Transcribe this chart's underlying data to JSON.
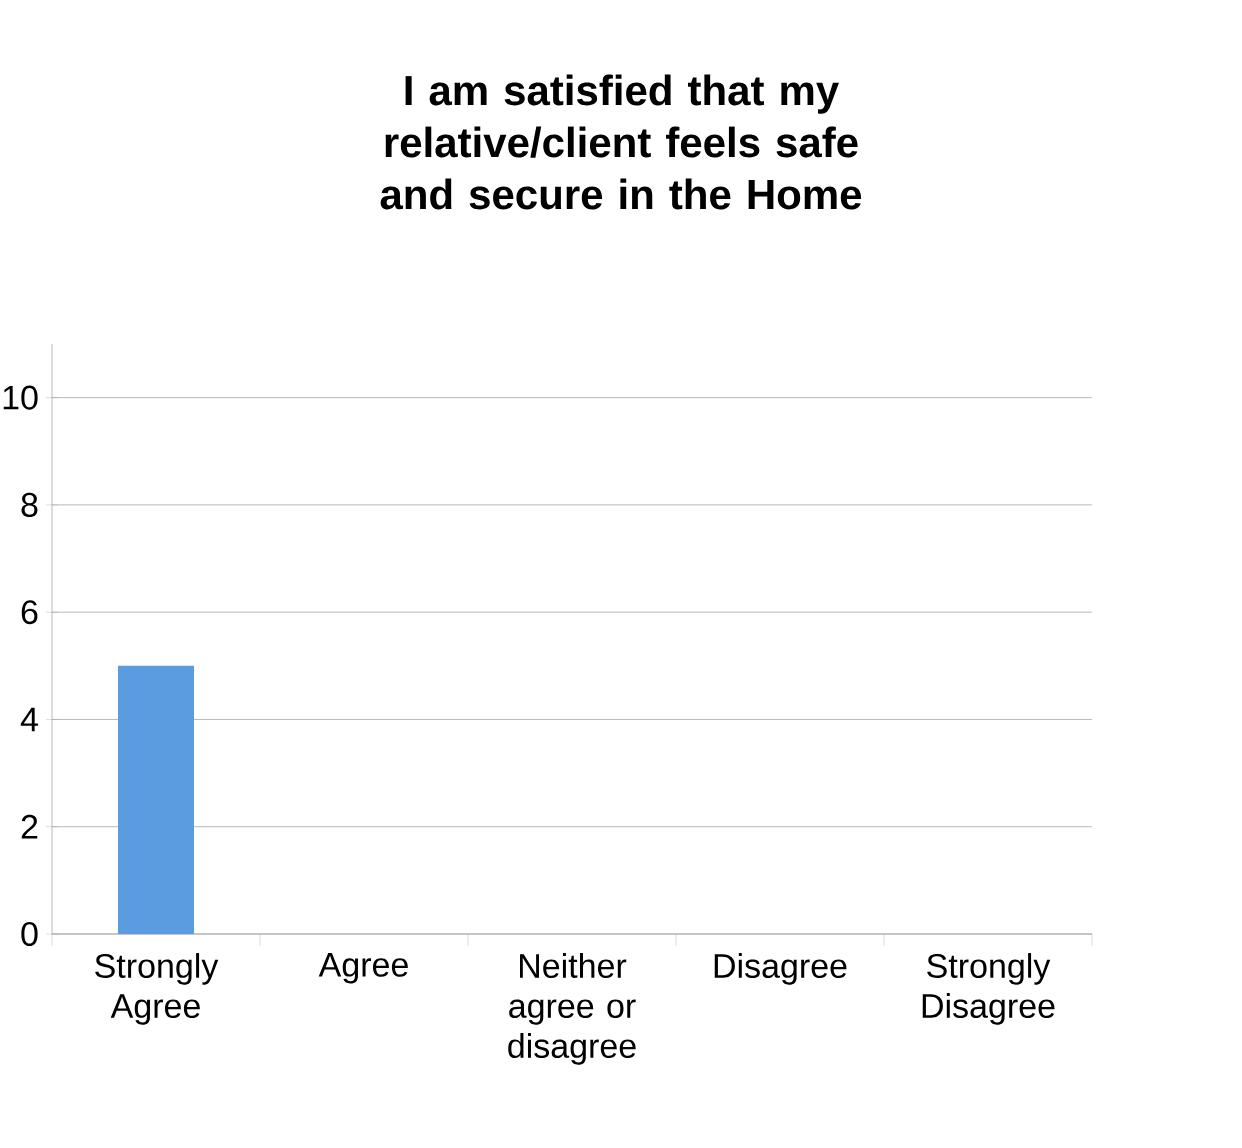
{
  "chart_data": {
    "type": "bar",
    "title": "I am satisfied that my relative/client feels safe and secure in the Home",
    "categories": [
      "Strongly Agree",
      "Agree",
      "Neither agree or disagree",
      "Disagree",
      "Strongly Disagree"
    ],
    "values": [
      5,
      0,
      0,
      0,
      0
    ],
    "color": "#5b9be0",
    "ylim": [
      0,
      11
    ],
    "yticks": [
      0,
      2,
      4,
      6,
      8,
      10
    ],
    "grid": "y"
  }
}
